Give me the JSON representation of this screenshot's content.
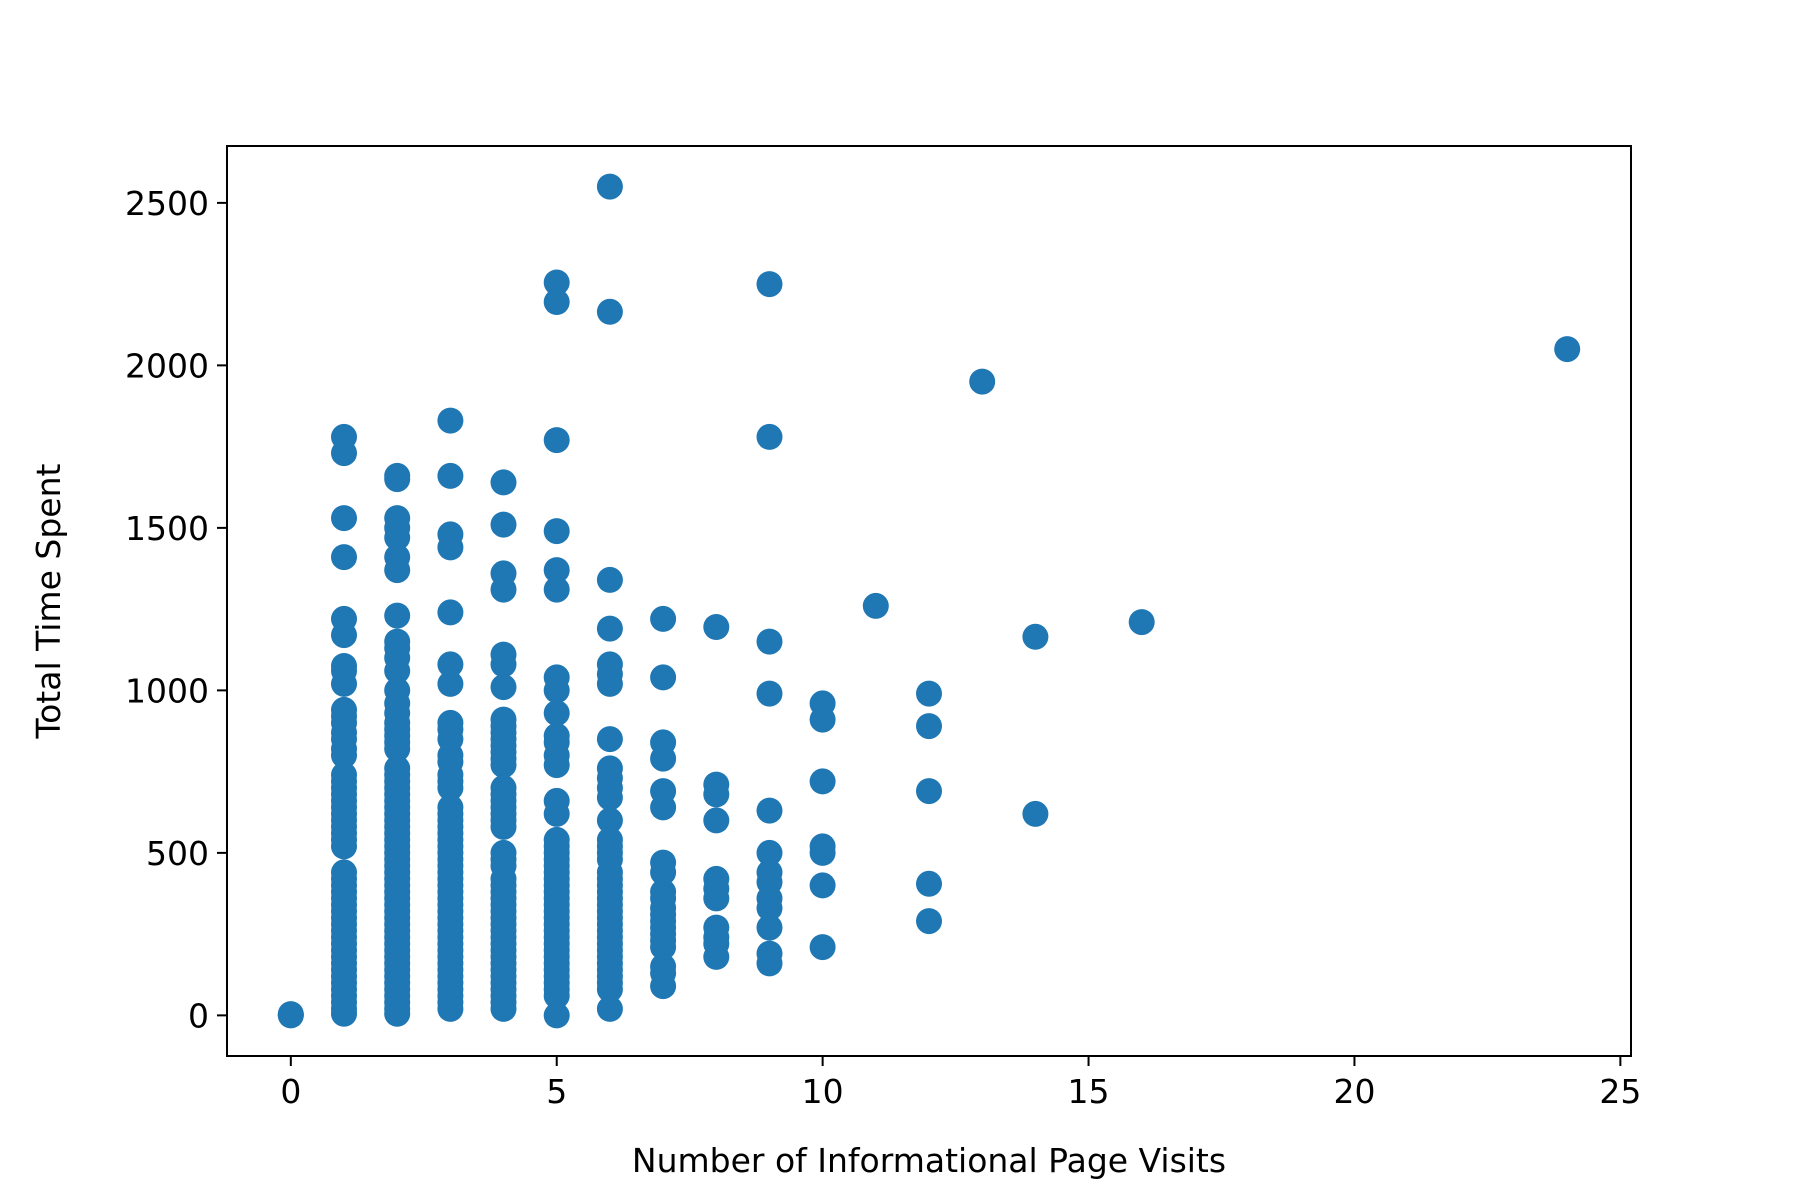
{
  "chart_data": {
    "type": "scatter",
    "title": "",
    "xlabel": "Number of Informational Page Visits",
    "ylabel": "Total Time Spent",
    "xlim": [
      -1.2,
      25.2
    ],
    "ylim": [
      -125,
      2675
    ],
    "xticks": [
      0,
      5,
      10,
      15,
      20,
      25
    ],
    "yticks": [
      0,
      500,
      1000,
      1500,
      2000,
      2500
    ],
    "grid": false,
    "legend": "none",
    "marker_color": "#1f77b4",
    "series": [
      {
        "points": [
          [
            0,
            0
          ],
          [
            0,
            2
          ],
          [
            0,
            4
          ],
          [
            1,
            1780
          ],
          [
            1,
            1730
          ],
          [
            1,
            1530
          ],
          [
            1,
            1410
          ],
          [
            1,
            1220
          ],
          [
            1,
            1170
          ],
          [
            1,
            1075
          ],
          [
            1,
            1060
          ],
          [
            1,
            1020
          ],
          [
            1,
            940
          ],
          [
            1,
            920
          ],
          [
            1,
            900
          ],
          [
            1,
            870
          ],
          [
            1,
            850
          ],
          [
            1,
            820
          ],
          [
            1,
            800
          ],
          [
            1,
            740
          ],
          [
            1,
            720
          ],
          [
            1,
            700
          ],
          [
            1,
            680
          ],
          [
            1,
            660
          ],
          [
            1,
            640
          ],
          [
            1,
            620
          ],
          [
            1,
            600
          ],
          [
            1,
            580
          ],
          [
            1,
            560
          ],
          [
            1,
            540
          ],
          [
            1,
            520
          ],
          [
            1,
            440
          ],
          [
            1,
            420
          ],
          [
            1,
            400
          ],
          [
            1,
            380
          ],
          [
            1,
            360
          ],
          [
            1,
            340
          ],
          [
            1,
            320
          ],
          [
            1,
            300
          ],
          [
            1,
            280
          ],
          [
            1,
            260
          ],
          [
            1,
            240
          ],
          [
            1,
            220
          ],
          [
            1,
            200
          ],
          [
            1,
            180
          ],
          [
            1,
            160
          ],
          [
            1,
            140
          ],
          [
            1,
            120
          ],
          [
            1,
            100
          ],
          [
            1,
            80
          ],
          [
            1,
            60
          ],
          [
            1,
            40
          ],
          [
            1,
            20
          ],
          [
            1,
            5
          ],
          [
            2,
            1660
          ],
          [
            2,
            1650
          ],
          [
            2,
            1530
          ],
          [
            2,
            1500
          ],
          [
            2,
            1470
          ],
          [
            2,
            1410
          ],
          [
            2,
            1370
          ],
          [
            2,
            1230
          ],
          [
            2,
            1150
          ],
          [
            2,
            1130
          ],
          [
            2,
            1100
          ],
          [
            2,
            1060
          ],
          [
            2,
            1000
          ],
          [
            2,
            960
          ],
          [
            2,
            930
          ],
          [
            2,
            900
          ],
          [
            2,
            880
          ],
          [
            2,
            860
          ],
          [
            2,
            840
          ],
          [
            2,
            820
          ],
          [
            2,
            760
          ],
          [
            2,
            740
          ],
          [
            2,
            720
          ],
          [
            2,
            700
          ],
          [
            2,
            680
          ],
          [
            2,
            660
          ],
          [
            2,
            640
          ],
          [
            2,
            620
          ],
          [
            2,
            600
          ],
          [
            2,
            580
          ],
          [
            2,
            560
          ],
          [
            2,
            540
          ],
          [
            2,
            520
          ],
          [
            2,
            500
          ],
          [
            2,
            480
          ],
          [
            2,
            460
          ],
          [
            2,
            440
          ],
          [
            2,
            420
          ],
          [
            2,
            400
          ],
          [
            2,
            380
          ],
          [
            2,
            360
          ],
          [
            2,
            340
          ],
          [
            2,
            320
          ],
          [
            2,
            300
          ],
          [
            2,
            280
          ],
          [
            2,
            260
          ],
          [
            2,
            240
          ],
          [
            2,
            220
          ],
          [
            2,
            200
          ],
          [
            2,
            180
          ],
          [
            2,
            160
          ],
          [
            2,
            140
          ],
          [
            2,
            120
          ],
          [
            2,
            100
          ],
          [
            2,
            80
          ],
          [
            2,
            60
          ],
          [
            2,
            40
          ],
          [
            2,
            20
          ],
          [
            2,
            5
          ],
          [
            3,
            1830
          ],
          [
            3,
            1660
          ],
          [
            3,
            1480
          ],
          [
            3,
            1440
          ],
          [
            3,
            1240
          ],
          [
            3,
            1080
          ],
          [
            3,
            1020
          ],
          [
            3,
            900
          ],
          [
            3,
            880
          ],
          [
            3,
            850
          ],
          [
            3,
            800
          ],
          [
            3,
            780
          ],
          [
            3,
            740
          ],
          [
            3,
            720
          ],
          [
            3,
            700
          ],
          [
            3,
            640
          ],
          [
            3,
            620
          ],
          [
            3,
            600
          ],
          [
            3,
            580
          ],
          [
            3,
            560
          ],
          [
            3,
            540
          ],
          [
            3,
            520
          ],
          [
            3,
            500
          ],
          [
            3,
            480
          ],
          [
            3,
            460
          ],
          [
            3,
            440
          ],
          [
            3,
            420
          ],
          [
            3,
            400
          ],
          [
            3,
            380
          ],
          [
            3,
            360
          ],
          [
            3,
            340
          ],
          [
            3,
            320
          ],
          [
            3,
            300
          ],
          [
            3,
            280
          ],
          [
            3,
            260
          ],
          [
            3,
            240
          ],
          [
            3,
            220
          ],
          [
            3,
            200
          ],
          [
            3,
            180
          ],
          [
            3,
            160
          ],
          [
            3,
            140
          ],
          [
            3,
            120
          ],
          [
            3,
            100
          ],
          [
            3,
            80
          ],
          [
            3,
            60
          ],
          [
            3,
            40
          ],
          [
            3,
            20
          ],
          [
            4,
            1640
          ],
          [
            4,
            1510
          ],
          [
            4,
            1360
          ],
          [
            4,
            1310
          ],
          [
            4,
            1110
          ],
          [
            4,
            1080
          ],
          [
            4,
            1010
          ],
          [
            4,
            910
          ],
          [
            4,
            890
          ],
          [
            4,
            870
          ],
          [
            4,
            850
          ],
          [
            4,
            830
          ],
          [
            4,
            810
          ],
          [
            4,
            790
          ],
          [
            4,
            770
          ],
          [
            4,
            700
          ],
          [
            4,
            680
          ],
          [
            4,
            660
          ],
          [
            4,
            640
          ],
          [
            4,
            620
          ],
          [
            4,
            600
          ],
          [
            4,
            580
          ],
          [
            4,
            500
          ],
          [
            4,
            480
          ],
          [
            4,
            460
          ],
          [
            4,
            420
          ],
          [
            4,
            400
          ],
          [
            4,
            380
          ],
          [
            4,
            360
          ],
          [
            4,
            340
          ],
          [
            4,
            320
          ],
          [
            4,
            300
          ],
          [
            4,
            280
          ],
          [
            4,
            260
          ],
          [
            4,
            240
          ],
          [
            4,
            220
          ],
          [
            4,
            200
          ],
          [
            4,
            180
          ],
          [
            4,
            160
          ],
          [
            4,
            140
          ],
          [
            4,
            120
          ],
          [
            4,
            100
          ],
          [
            4,
            80
          ],
          [
            4,
            60
          ],
          [
            4,
            40
          ],
          [
            4,
            20
          ],
          [
            5,
            2255
          ],
          [
            5,
            2195
          ],
          [
            5,
            1770
          ],
          [
            5,
            1490
          ],
          [
            5,
            1370
          ],
          [
            5,
            1310
          ],
          [
            5,
            1040
          ],
          [
            5,
            1000
          ],
          [
            5,
            930
          ],
          [
            5,
            860
          ],
          [
            5,
            840
          ],
          [
            5,
            800
          ],
          [
            5,
            770
          ],
          [
            5,
            660
          ],
          [
            5,
            620
          ],
          [
            5,
            540
          ],
          [
            5,
            520
          ],
          [
            5,
            500
          ],
          [
            5,
            480
          ],
          [
            5,
            460
          ],
          [
            5,
            440
          ],
          [
            5,
            420
          ],
          [
            5,
            400
          ],
          [
            5,
            380
          ],
          [
            5,
            360
          ],
          [
            5,
            340
          ],
          [
            5,
            320
          ],
          [
            5,
            300
          ],
          [
            5,
            280
          ],
          [
            5,
            260
          ],
          [
            5,
            240
          ],
          [
            5,
            220
          ],
          [
            5,
            200
          ],
          [
            5,
            180
          ],
          [
            5,
            160
          ],
          [
            5,
            140
          ],
          [
            5,
            120
          ],
          [
            5,
            100
          ],
          [
            5,
            80
          ],
          [
            5,
            60
          ],
          [
            5,
            0
          ],
          [
            6,
            2550
          ],
          [
            6,
            2165
          ],
          [
            6,
            1340
          ],
          [
            6,
            1190
          ],
          [
            6,
            1080
          ],
          [
            6,
            1050
          ],
          [
            6,
            1020
          ],
          [
            6,
            850
          ],
          [
            6,
            760
          ],
          [
            6,
            730
          ],
          [
            6,
            700
          ],
          [
            6,
            670
          ],
          [
            6,
            600
          ],
          [
            6,
            540
          ],
          [
            6,
            520
          ],
          [
            6,
            500
          ],
          [
            6,
            480
          ],
          [
            6,
            440
          ],
          [
            6,
            420
          ],
          [
            6,
            400
          ],
          [
            6,
            380
          ],
          [
            6,
            360
          ],
          [
            6,
            340
          ],
          [
            6,
            320
          ],
          [
            6,
            300
          ],
          [
            6,
            280
          ],
          [
            6,
            260
          ],
          [
            6,
            240
          ],
          [
            6,
            220
          ],
          [
            6,
            200
          ],
          [
            6,
            180
          ],
          [
            6,
            160
          ],
          [
            6,
            140
          ],
          [
            6,
            120
          ],
          [
            6,
            100
          ],
          [
            6,
            80
          ],
          [
            6,
            20
          ],
          [
            7,
            1220
          ],
          [
            7,
            1040
          ],
          [
            7,
            840
          ],
          [
            7,
            790
          ],
          [
            7,
            690
          ],
          [
            7,
            640
          ],
          [
            7,
            470
          ],
          [
            7,
            440
          ],
          [
            7,
            380
          ],
          [
            7,
            360
          ],
          [
            7,
            330
          ],
          [
            7,
            310
          ],
          [
            7,
            290
          ],
          [
            7,
            270
          ],
          [
            7,
            250
          ],
          [
            7,
            230
          ],
          [
            7,
            210
          ],
          [
            7,
            150
          ],
          [
            7,
            130
          ],
          [
            7,
            90
          ],
          [
            8,
            1195
          ],
          [
            8,
            710
          ],
          [
            8,
            680
          ],
          [
            8,
            600
          ],
          [
            8,
            420
          ],
          [
            8,
            390
          ],
          [
            8,
            360
          ],
          [
            8,
            270
          ],
          [
            8,
            240
          ],
          [
            8,
            220
          ],
          [
            8,
            180
          ],
          [
            9,
            2250
          ],
          [
            9,
            1780
          ],
          [
            9,
            1150
          ],
          [
            9,
            990
          ],
          [
            9,
            630
          ],
          [
            9,
            500
          ],
          [
            9,
            440
          ],
          [
            9,
            410
          ],
          [
            9,
            360
          ],
          [
            9,
            330
          ],
          [
            9,
            270
          ],
          [
            9,
            190
          ],
          [
            9,
            160
          ],
          [
            10,
            960
          ],
          [
            10,
            910
          ],
          [
            10,
            720
          ],
          [
            10,
            520
          ],
          [
            10,
            500
          ],
          [
            10,
            400
          ],
          [
            10,
            210
          ],
          [
            11,
            1260
          ],
          [
            12,
            990
          ],
          [
            12,
            890
          ],
          [
            12,
            690
          ],
          [
            12,
            405
          ],
          [
            12,
            290
          ],
          [
            13,
            1950
          ],
          [
            14,
            1165
          ],
          [
            14,
            620
          ],
          [
            16,
            1210
          ],
          [
            24,
            2050
          ]
        ]
      }
    ]
  }
}
